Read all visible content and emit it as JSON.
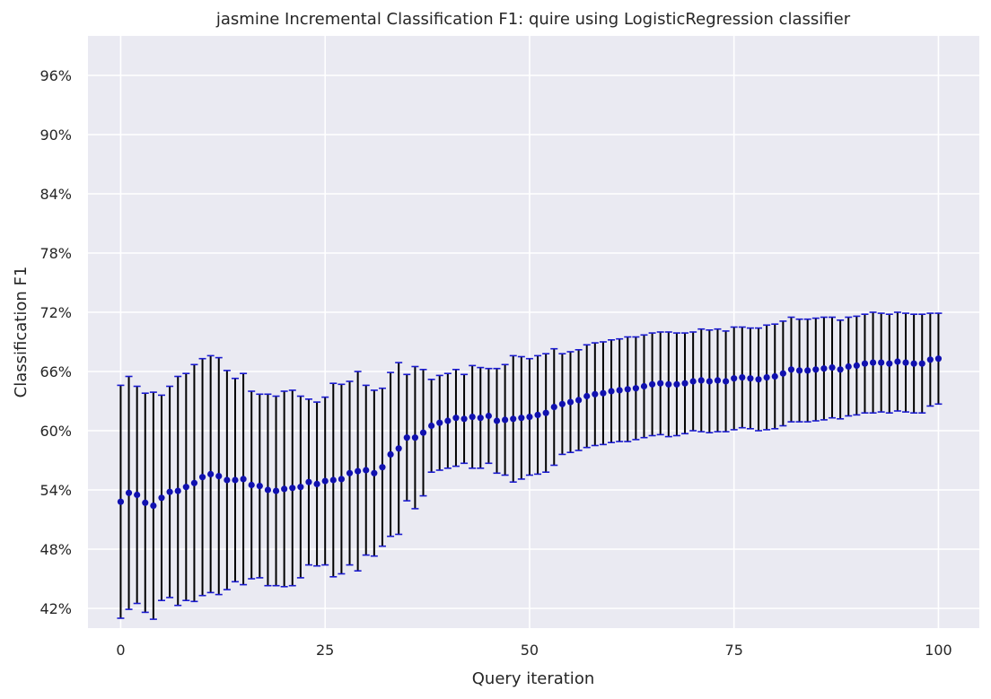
{
  "chart_data": {
    "type": "scatter",
    "title": "jasmine Incremental Classification F1: quire using LogisticRegression classifier",
    "xlabel": "Query iteration",
    "ylabel": "Classification F1",
    "xlim": [
      -4,
      105
    ],
    "ylim": [
      0.4,
      1.0
    ],
    "xticks": [
      0,
      25,
      50,
      75,
      100
    ],
    "xtick_labels": [
      "0",
      "25",
      "50",
      "75",
      "100"
    ],
    "yticks": [
      0.42,
      0.48,
      0.54,
      0.6,
      0.66,
      0.72,
      0.78,
      0.84,
      0.9,
      0.96
    ],
    "ytick_labels": [
      "42%",
      "48%",
      "54%",
      "60%",
      "66%",
      "72%",
      "78%",
      "84%",
      "90%",
      "96%"
    ],
    "grid": true,
    "colors": {
      "background": "#eaeaf2",
      "grid": "#ffffff",
      "marker": "#1010b0",
      "errorbar": "#000000",
      "cap": "#1a1ad0"
    },
    "series": [
      {
        "x": [
          0,
          1,
          2,
          3,
          4,
          5,
          6,
          7,
          8,
          9,
          10,
          11,
          12,
          13,
          14,
          15,
          16,
          17,
          18,
          19,
          20,
          21,
          22,
          23,
          24,
          25,
          26,
          27,
          28,
          29,
          30,
          31,
          32,
          33,
          34,
          35,
          36,
          37,
          38,
          39,
          40,
          41,
          42,
          43,
          44,
          45,
          46,
          47,
          48,
          49,
          50,
          51,
          52,
          53,
          54,
          55,
          56,
          57,
          58,
          59,
          60,
          61,
          62,
          63,
          64,
          65,
          66,
          67,
          68,
          69,
          70,
          71,
          72,
          73,
          74,
          75,
          76,
          77,
          78,
          79,
          80,
          81,
          82,
          83,
          84,
          85,
          86,
          87,
          88,
          89,
          90,
          91,
          92,
          93,
          94,
          95,
          96,
          97,
          98,
          99,
          100
        ],
        "y": [
          0.528,
          0.537,
          0.535,
          0.527,
          0.524,
          0.532,
          0.538,
          0.539,
          0.543,
          0.547,
          0.553,
          0.556,
          0.554,
          0.55,
          0.55,
          0.551,
          0.545,
          0.544,
          0.54,
          0.539,
          0.541,
          0.542,
          0.543,
          0.548,
          0.546,
          0.549,
          0.55,
          0.551,
          0.557,
          0.559,
          0.56,
          0.557,
          0.563,
          0.576,
          0.582,
          0.593,
          0.593,
          0.598,
          0.605,
          0.608,
          0.61,
          0.613,
          0.612,
          0.614,
          0.613,
          0.615,
          0.61,
          0.611,
          0.612,
          0.613,
          0.614,
          0.616,
          0.618,
          0.624,
          0.627,
          0.629,
          0.631,
          0.635,
          0.637,
          0.638,
          0.64,
          0.641,
          0.642,
          0.643,
          0.645,
          0.647,
          0.648,
          0.647,
          0.647,
          0.648,
          0.65,
          0.651,
          0.65,
          0.651,
          0.65,
          0.653,
          0.654,
          0.653,
          0.652,
          0.654,
          0.655,
          0.658,
          0.662,
          0.661,
          0.661,
          0.662,
          0.663,
          0.664,
          0.662,
          0.665,
          0.666,
          0.668,
          0.669,
          0.669,
          0.668,
          0.67,
          0.669,
          0.668,
          0.668,
          0.672,
          0.673
        ],
        "err": [
          0.118,
          0.118,
          0.11,
          0.111,
          0.115,
          0.104,
          0.107,
          0.116,
          0.115,
          0.12,
          0.12,
          0.12,
          0.12,
          0.111,
          0.103,
          0.107,
          0.095,
          0.093,
          0.097,
          0.096,
          0.099,
          0.099,
          0.092,
          0.084,
          0.083,
          0.085,
          0.098,
          0.096,
          0.093,
          0.101,
          0.086,
          0.084,
          0.08,
          0.083,
          0.087,
          0.064,
          0.072,
          0.064,
          0.047,
          0.048,
          0.048,
          0.049,
          0.045,
          0.052,
          0.051,
          0.048,
          0.053,
          0.056,
          0.064,
          0.062,
          0.059,
          0.06,
          0.06,
          0.059,
          0.051,
          0.051,
          0.051,
          0.052,
          0.052,
          0.052,
          0.052,
          0.052,
          0.053,
          0.052,
          0.052,
          0.052,
          0.052,
          0.053,
          0.052,
          0.051,
          0.05,
          0.052,
          0.052,
          0.052,
          0.051,
          0.052,
          0.051,
          0.051,
          0.052,
          0.053,
          0.053,
          0.053,
          0.053,
          0.052,
          0.052,
          0.052,
          0.052,
          0.051,
          0.05,
          0.05,
          0.05,
          0.05,
          0.051,
          0.05,
          0.05,
          0.05,
          0.05,
          0.05,
          0.05,
          0.047,
          0.046
        ]
      }
    ]
  }
}
